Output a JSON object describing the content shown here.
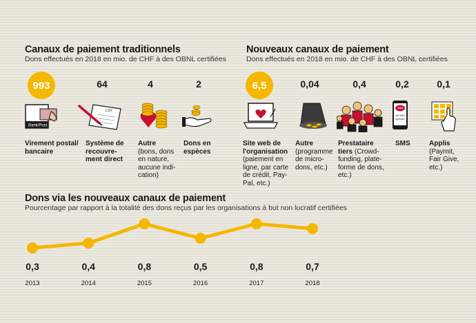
{
  "traditional": {
    "title": "Canaux de paiement traditionnels",
    "subtitle": "Dons effectués en 2018 en mio. de CHF à des OBNL certifiées",
    "items": [
      {
        "value": "993",
        "label": "Virement postal/\nbancaire",
        "desc": ""
      },
      {
        "value": "64",
        "label": "Système de\nrecouvre-\nment direct",
        "desc": ""
      },
      {
        "value": "4",
        "label": "Autre",
        "desc": "(bons, dons\nen nature,\naucune indi-\ncation)"
      },
      {
        "value": "2",
        "label": "Dons en\nespèces",
        "desc": ""
      }
    ]
  },
  "new": {
    "title": "Nouveaux canaux de paiement",
    "subtitle": "Dons effectués en 2018 en mio. de CHF à des OBNL certifiées",
    "items": [
      {
        "value": "6,5",
        "label": "Site web de\nl'organisation",
        "desc": "(paiement en\nligne, par carte\nde crédit, Pay-\nPal, etc.)"
      },
      {
        "value": "0,04",
        "label": "Autre",
        "desc": "(programme\nde micro-\ndons, etc.)"
      },
      {
        "value": "0,4",
        "label": "Prestataire\ntiers",
        "desc": " (Crowd-\nfunding, plate-\nforme de dons,\netc.)"
      },
      {
        "value": "0,2",
        "label": "SMS",
        "desc": ""
      },
      {
        "value": "0,1",
        "label": "Applis",
        "desc": "(Paymit,\nFair Give,\netc.)"
      }
    ]
  },
  "icons": {
    "bank_text": "Bank/Post",
    "lsv_text": "LSV",
    "sms_text": "Jetzt\nmit SMS\nspenden"
  },
  "colors": {
    "accent": "#f5b700",
    "red": "#c8102e"
  },
  "line_section": {
    "title": "Dons via les nouveaux canaux de paiement",
    "subtitle": "Pourcentage par rapport à la totalité des dons reçus par les organisations à but non lucratif certifiées"
  },
  "chart_data": {
    "type": "line",
    "x": [
      "2013",
      "2014",
      "2015",
      "2016",
      "2017",
      "2018"
    ],
    "values": [
      0.3,
      0.4,
      0.8,
      0.5,
      0.8,
      0.7
    ],
    "value_labels": [
      "0,3",
      "0,4",
      "0,8",
      "0,5",
      "0,8",
      "0,7"
    ],
    "title": "Dons via les nouveaux canaux de paiement",
    "subtitle": "Pourcentage par rapport à la totalité des dons reçus par les organisations à but non lucratif certifiées",
    "ylabel": "",
    "grid": false,
    "color": "#f5b700"
  }
}
